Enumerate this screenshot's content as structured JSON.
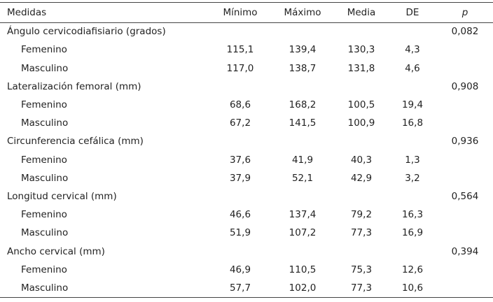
{
  "header": {
    "columns": [
      "Medidas",
      "Mínimo",
      "Máximo",
      "Media",
      "DE",
      "p"
    ]
  },
  "groups": [
    {
      "label": "Ángulo cervicodiafisiario (grados)",
      "p": "0,082",
      "rows": [
        {
          "label": "Femenino",
          "values": [
            "115,1",
            "139,4",
            "130,3",
            "4,3"
          ]
        },
        {
          "label": "Masculino",
          "values": [
            "117,0",
            "138,7",
            "131,8",
            "4,6"
          ]
        }
      ]
    },
    {
      "label": "Lateralización femoral (mm)",
      "p": "0,908",
      "rows": [
        {
          "label": "Femenino",
          "values": [
            "68,6",
            "168,2",
            "100,5",
            "19,4"
          ]
        },
        {
          "label": "Masculino",
          "values": [
            "67,2",
            "141,5",
            "100,9",
            "16,8"
          ]
        }
      ]
    },
    {
      "label": "Circunferencia cefálica (mm)",
      "p": "0,936",
      "rows": [
        {
          "label": "Femenino",
          "values": [
            "37,6",
            "41,9",
            "40,3",
            "1,3"
          ]
        },
        {
          "label": "Masculino",
          "values": [
            "37,9",
            "52,1",
            "42,9",
            "3,2"
          ]
        }
      ]
    },
    {
      "label": "Longitud cervical (mm)",
      "p": "0,564",
      "rows": [
        {
          "label": "Femenino",
          "values": [
            "46,6",
            "137,4",
            "79,2",
            "16,3"
          ]
        },
        {
          "label": "Masculino",
          "values": [
            "51,9",
            "107,2",
            "77,3",
            "16,9"
          ]
        }
      ]
    },
    {
      "label": "Ancho cervical (mm)",
      "p": "0,394",
      "rows": [
        {
          "label": "Femenino",
          "values": [
            "46,9",
            "110,5",
            "75,3",
            "12,6"
          ]
        },
        {
          "label": "Masculino",
          "values": [
            "57,7",
            "102,0",
            "77,3",
            "10,6"
          ]
        }
      ]
    }
  ]
}
